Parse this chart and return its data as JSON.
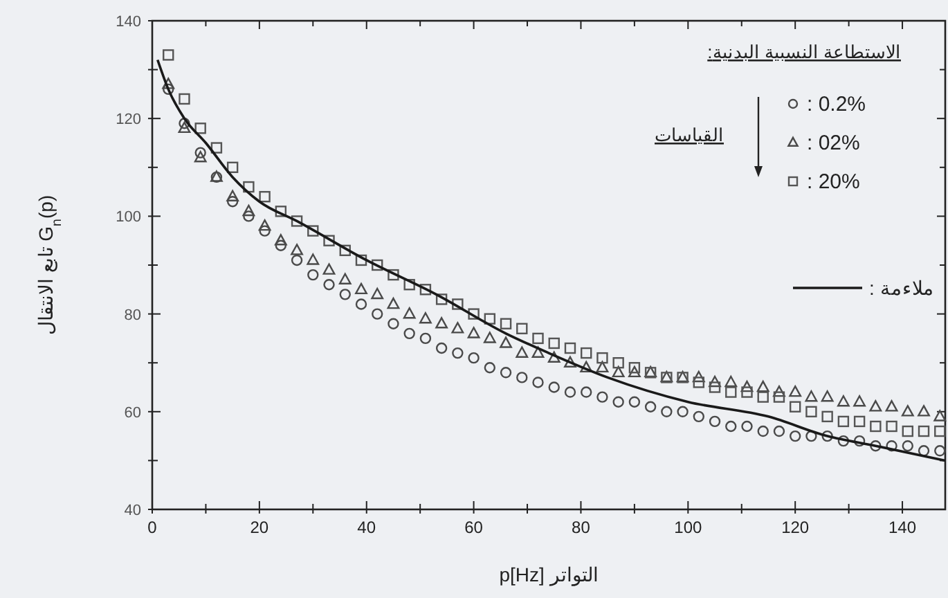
{
  "chart_data": {
    "type": "scatter",
    "xlabel": "p[Hz] التواتر",
    "ylabel": "تابع الانتقال G$_{n}$(p)",
    "legend_title": ":الاستطاعة النسبية البدنية",
    "annotations": [
      "القياسات"
    ],
    "xlim": [
      0,
      148
    ],
    "ylim": [
      40,
      140
    ],
    "xticks": [
      0,
      {
        "value": 10,
        "label": null
      },
      20,
      {
        "value": 30,
        "label": null
      },
      40,
      {
        "value": 50,
        "label": null
      },
      60,
      {
        "value": 70,
        "label": null
      },
      80,
      {
        "value": 90,
        "label": null
      },
      100,
      {
        "value": 110,
        "label": null
      },
      120,
      {
        "value": 130,
        "label": null
      },
      140
    ],
    "yticks": [
      40,
      {
        "value": 50,
        "label": null
      },
      60,
      {
        "value": 70,
        "label": null
      },
      80,
      {
        "value": 90,
        "label": null
      },
      100,
      {
        "value": 110,
        "label": null
      },
      120,
      {
        "value": 130,
        "label": null
      },
      140
    ],
    "grid": false,
    "legend": "top right",
    "x": [
      3,
      6,
      9,
      12,
      15,
      18,
      21,
      24,
      27,
      30,
      33,
      36,
      39,
      42,
      45,
      48,
      51,
      54,
      57,
      60,
      63,
      66,
      69,
      72,
      75,
      78,
      81,
      84,
      87,
      90,
      93,
      96,
      99,
      102,
      105,
      108,
      111,
      114,
      117,
      120,
      123,
      126,
      129,
      132,
      135,
      138,
      141,
      144,
      147
    ],
    "series": [
      {
        "name": ": 0.2%",
        "marker": "circle",
        "color": "#4a4a4a",
        "values": [
          126,
          119,
          113,
          108,
          103,
          100,
          97,
          94,
          91,
          88,
          86,
          84,
          82,
          80,
          78,
          76,
          75,
          73,
          72,
          71,
          69,
          68,
          67,
          66,
          65,
          64,
          64,
          63,
          62,
          62,
          61,
          60,
          60,
          59,
          58,
          57,
          57,
          56,
          56,
          55,
          55,
          55,
          54,
          54,
          53,
          53,
          53,
          52,
          52
        ]
      },
      {
        "name": ": 02%",
        "marker": "triangle",
        "color": "#4a4a4a",
        "values": [
          127,
          118,
          112,
          108,
          104,
          101,
          98,
          95,
          93,
          91,
          89,
          87,
          85,
          84,
          82,
          80,
          79,
          78,
          77,
          76,
          75,
          74,
          72,
          72,
          71,
          70,
          69,
          69,
          68,
          68,
          68,
          67,
          67,
          67,
          66,
          66,
          65,
          65,
          64,
          64,
          63,
          63,
          62,
          62,
          61,
          61,
          60,
          60,
          59
        ]
      },
      {
        "name": ": 20%",
        "marker": "square",
        "color": "#555555",
        "values": [
          133,
          124,
          118,
          114,
          110,
          106,
          104,
          101,
          99,
          97,
          95,
          93,
          91,
          90,
          88,
          86,
          85,
          83,
          82,
          80,
          79,
          78,
          77,
          75,
          74,
          73,
          72,
          71,
          70,
          69,
          68,
          67,
          67,
          66,
          65,
          64,
          64,
          63,
          63,
          61,
          60,
          59,
          58,
          58,
          57,
          57,
          56,
          56,
          56
        ]
      },
      {
        "name": ": ملاءمة",
        "type": "line",
        "marker": "none",
        "line_style": "solid",
        "color": "#1a1a1a",
        "x": [
          1,
          3,
          6,
          10,
          15,
          20,
          27,
          40,
          53,
          66,
          74,
          85,
          100,
          115,
          126,
          135,
          148
        ],
        "values": [
          132,
          126,
          120,
          115,
          108,
          103,
          99,
          91,
          84,
          76,
          72,
          67,
          62,
          59,
          55,
          53,
          50
        ]
      }
    ]
  }
}
